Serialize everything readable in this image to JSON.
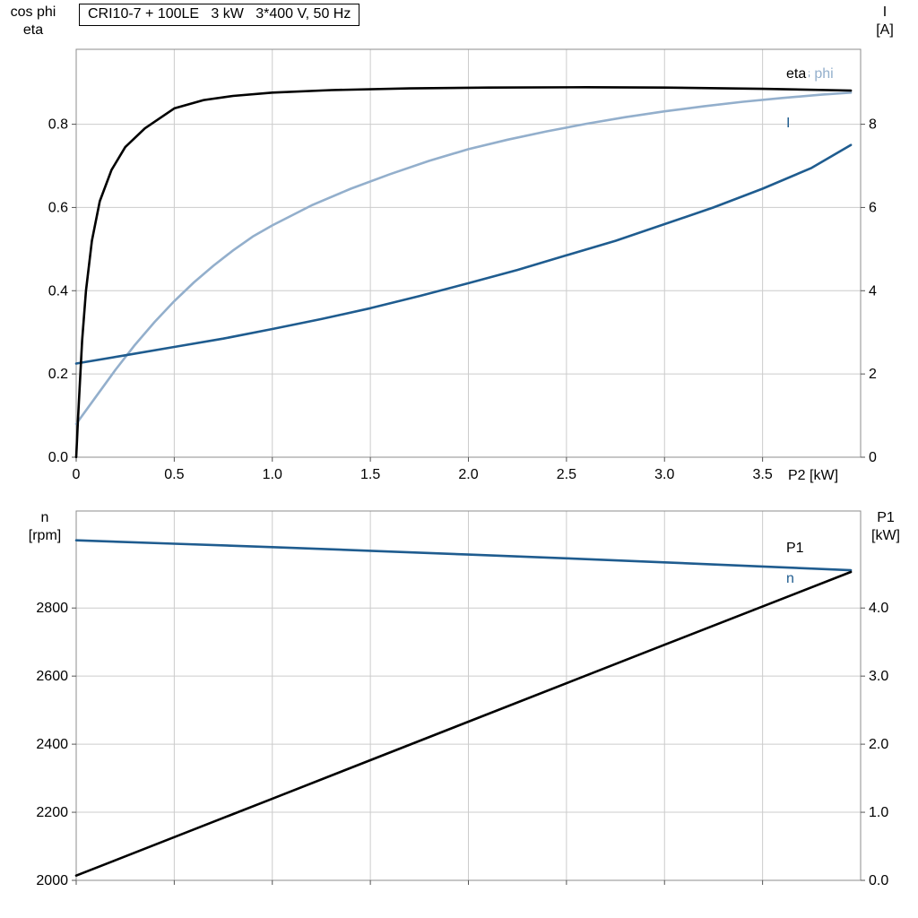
{
  "colors": {
    "black": "#000000",
    "dark_blue": "#1f5c8f",
    "light_blue": "#93afcc",
    "grid": "#cccccc",
    "frame": "#8c8c8c"
  },
  "chart_data": [
    {
      "type": "line",
      "title": "CRI10-7 + 100LE   3 kW   3*400 V, 50 Hz",
      "xlabel": "P2 [kW]",
      "left_axis_lines": [
        "cos phi",
        "eta"
      ],
      "right_axis_lines": [
        "I",
        "[A]"
      ],
      "xlim": [
        0,
        4.0
      ],
      "x_ticks": [
        0,
        0.5,
        1.0,
        1.5,
        2.0,
        2.5,
        3.0,
        3.5
      ],
      "x_tick_labels": [
        "0",
        "0.5",
        "1.0",
        "1.5",
        "2.0",
        "2.5",
        "3.0",
        "3.5"
      ],
      "left_ylim": [
        0,
        0.98
      ],
      "left_ticks": [
        0,
        0.2,
        0.4,
        0.6,
        0.8
      ],
      "left_tick_labels": [
        "0.0",
        "0.2",
        "0.4",
        "0.6",
        "0.8"
      ],
      "right_ylim": [
        0,
        9.8
      ],
      "right_ticks": [
        0,
        2,
        4,
        6,
        8
      ],
      "right_tick_labels": [
        "0",
        "2",
        "4",
        "6",
        "8"
      ],
      "grid": true,
      "legend_position": "inside-right",
      "series": [
        {
          "name": "cos phi",
          "axis": "left",
          "color": "#93afcc",
          "x": [
            0,
            0.1,
            0.2,
            0.3,
            0.4,
            0.5,
            0.6,
            0.7,
            0.8,
            0.9,
            1.0,
            1.2,
            1.4,
            1.6,
            1.8,
            2.0,
            2.2,
            2.4,
            2.6,
            2.8,
            3.0,
            3.2,
            3.4,
            3.6,
            3.8,
            3.95
          ],
          "y": [
            0.08,
            0.145,
            0.21,
            0.27,
            0.325,
            0.375,
            0.42,
            0.46,
            0.497,
            0.53,
            0.557,
            0.605,
            0.645,
            0.68,
            0.712,
            0.74,
            0.763,
            0.783,
            0.801,
            0.817,
            0.831,
            0.843,
            0.854,
            0.863,
            0.871,
            0.876
          ]
        },
        {
          "name": "I",
          "axis": "right",
          "color": "#1f5c8f",
          "x": [
            0,
            0.25,
            0.5,
            0.75,
            1.0,
            1.25,
            1.5,
            1.75,
            2.0,
            2.25,
            2.5,
            2.75,
            3.0,
            3.25,
            3.5,
            3.75,
            3.95
          ],
          "y": [
            2.25,
            2.45,
            2.65,
            2.85,
            3.08,
            3.32,
            3.58,
            3.87,
            4.18,
            4.5,
            4.85,
            5.2,
            5.6,
            6.0,
            6.45,
            6.95,
            7.5
          ]
        },
        {
          "name": "eta",
          "axis": "left",
          "color": "#000000",
          "x": [
            0,
            0.01,
            0.03,
            0.05,
            0.08,
            0.12,
            0.18,
            0.25,
            0.35,
            0.5,
            0.65,
            0.8,
            1.0,
            1.3,
            1.7,
            2.1,
            2.6,
            3.0,
            3.5,
            3.95
          ],
          "y": [
            0,
            0.1,
            0.28,
            0.4,
            0.52,
            0.615,
            0.69,
            0.745,
            0.79,
            0.838,
            0.858,
            0.868,
            0.876,
            0.882,
            0.886,
            0.888,
            0.889,
            0.888,
            0.885,
            0.881
          ]
        }
      ]
    },
    {
      "type": "line",
      "title": "",
      "xlabel": "",
      "left_axis_lines": [
        "n",
        "[rpm]"
      ],
      "right_axis_lines": [
        "P1",
        "[kW]"
      ],
      "xlim": [
        0,
        4.0
      ],
      "x_ticks": [
        0,
        0.5,
        1.0,
        1.5,
        2.0,
        2.5,
        3.0,
        3.5
      ],
      "x_tick_labels": [],
      "left_ylim": [
        2000,
        3085
      ],
      "left_ticks": [
        2000,
        2200,
        2400,
        2600,
        2800
      ],
      "left_tick_labels": [
        "2000",
        "2200",
        "2400",
        "2600",
        "2800"
      ],
      "right_ylim": [
        0,
        5.425
      ],
      "right_ticks": [
        0,
        1,
        2,
        3,
        4
      ],
      "right_tick_labels": [
        "0.0",
        "1.0",
        "2.0",
        "3.0",
        "4.0"
      ],
      "grid": true,
      "legend_position": "inside-right",
      "series": [
        {
          "name": "n",
          "axis": "left",
          "color": "#1f5c8f",
          "x": [
            0,
            0.5,
            1.0,
            1.5,
            2.0,
            2.5,
            3.0,
            3.5,
            3.95
          ],
          "y": [
            2999,
            2989,
            2979,
            2968,
            2957,
            2946,
            2934,
            2922,
            2911
          ]
        },
        {
          "name": "P1",
          "axis": "right",
          "color": "#000000",
          "x": [
            0,
            1.0,
            2.0,
            3.0,
            3.95
          ],
          "y": [
            0.07,
            1.2,
            2.33,
            3.46,
            4.53
          ]
        }
      ]
    }
  ]
}
